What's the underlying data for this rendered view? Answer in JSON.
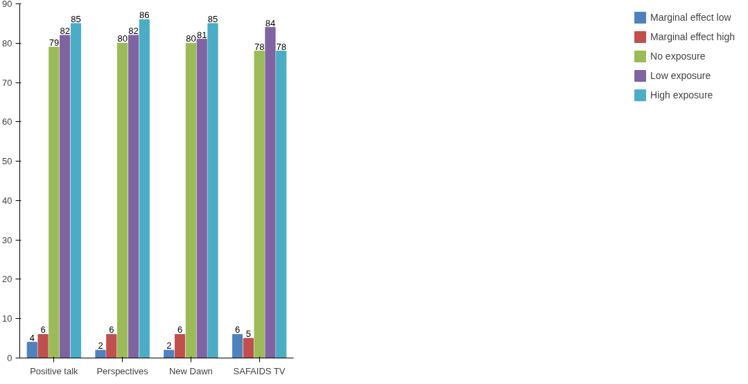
{
  "chart_data": {
    "type": "bar",
    "categories": [
      "Positive talk",
      "Perspectives",
      "New Dawn",
      "SAFAIDS TV"
    ],
    "series": [
      {
        "name": "Marginal effect low",
        "color": "#4f81bd",
        "values": [
          4,
          2,
          2,
          6
        ]
      },
      {
        "name": "Marginal effect high",
        "color": "#c0504d",
        "values": [
          6,
          6,
          6,
          5
        ]
      },
      {
        "name": "No exposure",
        "color": "#9bbb59",
        "values": [
          79,
          80,
          80,
          78
        ]
      },
      {
        "name": "Low exposure",
        "color": "#8064a2",
        "values": [
          82,
          82,
          81,
          84
        ]
      },
      {
        "name": "High exposure",
        "color": "#4bacc6",
        "values": [
          85,
          86,
          85,
          78
        ]
      }
    ],
    "ylim": [
      0,
      90
    ],
    "yticks": [
      0,
      10,
      20,
      30,
      40,
      50,
      60,
      70,
      80,
      90
    ],
    "data_labels": true,
    "legend": "right",
    "grid": false
  }
}
